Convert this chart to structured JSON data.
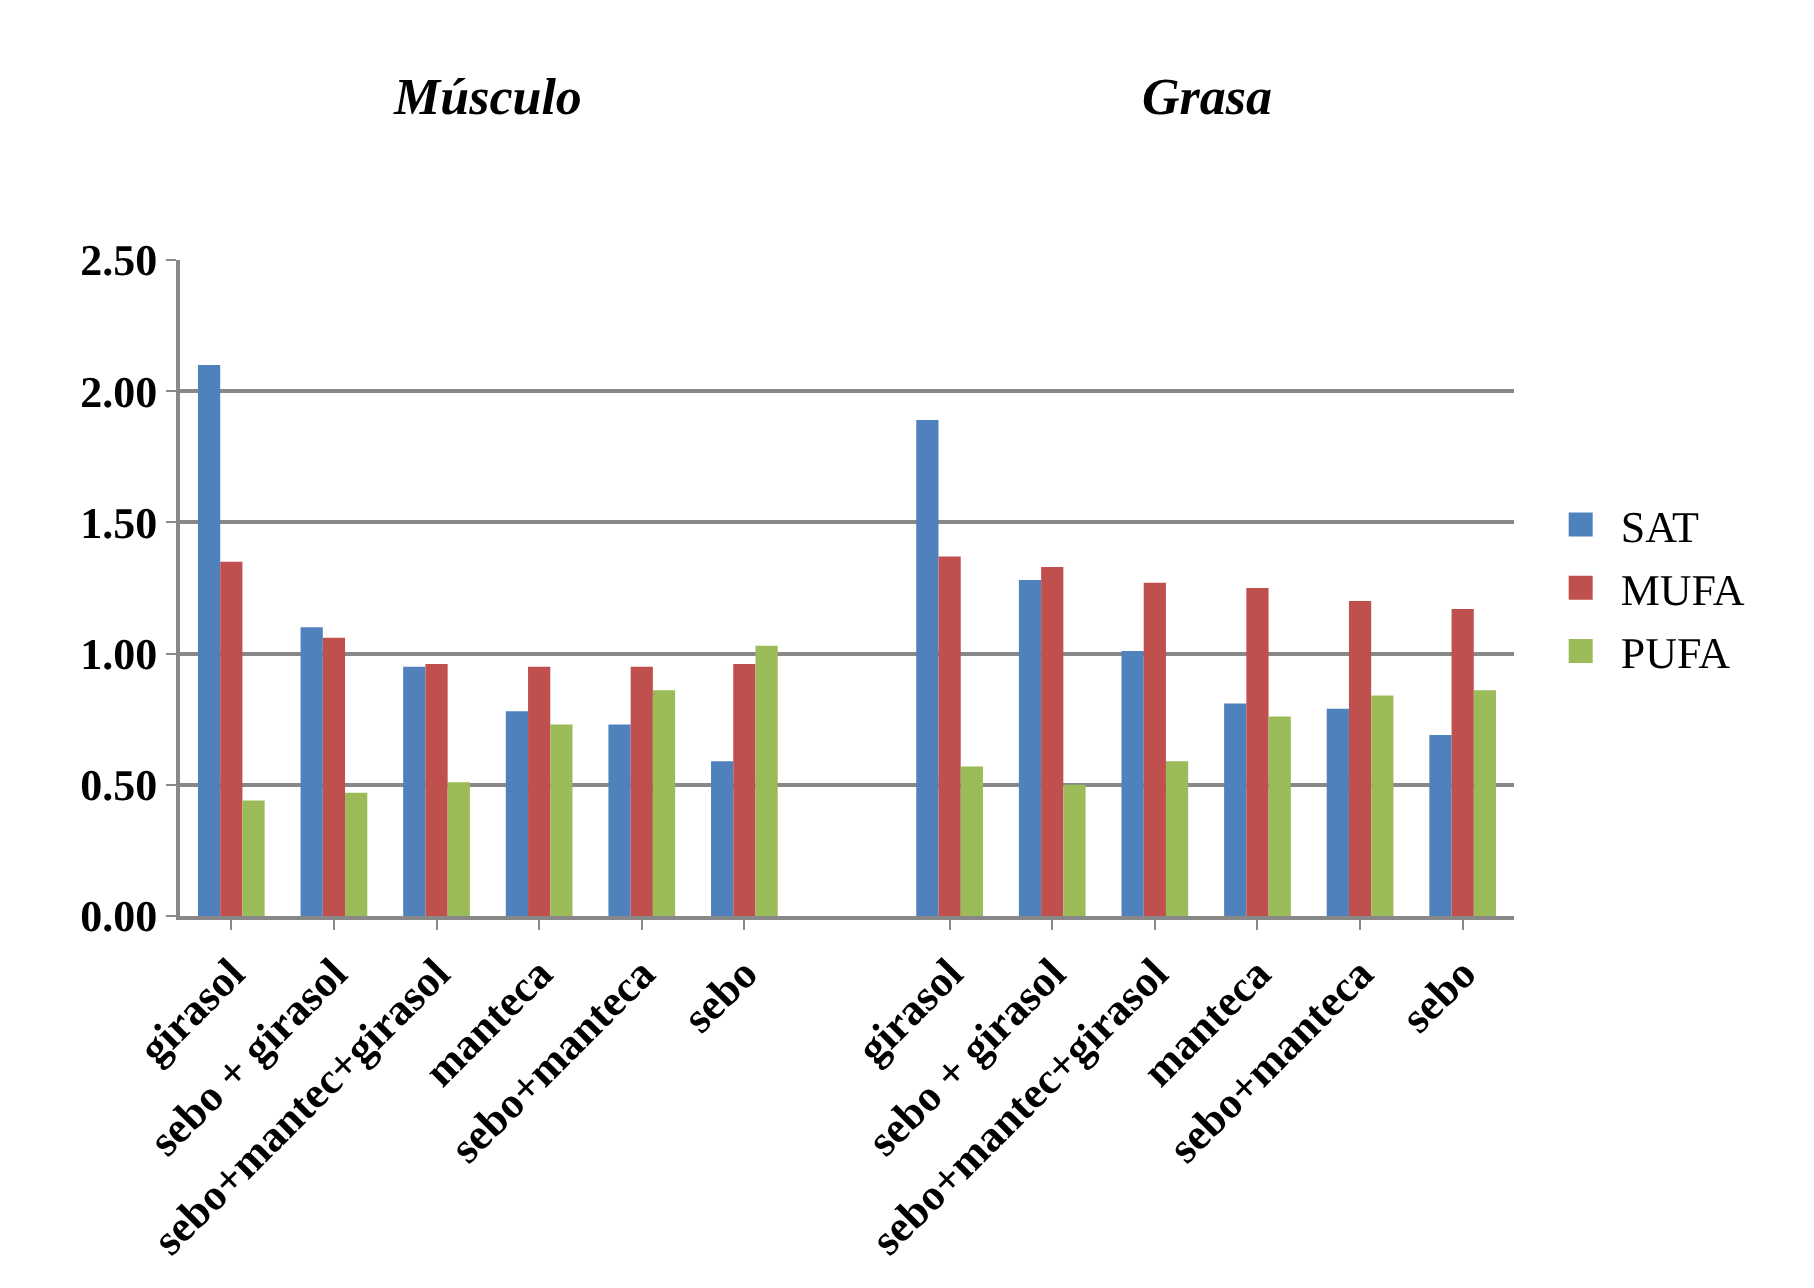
{
  "chart_data": {
    "type": "bar",
    "annotations": [
      "Músculo",
      "Grasa"
    ],
    "categories": [
      "girasol",
      "sebo + girasol",
      "sebo+mantec+girasol",
      "manteca",
      "sebo+manteca",
      "sebo",
      null,
      "girasol",
      "sebo + girasol",
      "sebo+mantec+girasol",
      "manteca",
      "sebo+manteca",
      "sebo"
    ],
    "series": [
      {
        "name": "SAT",
        "color": "#4f81bd",
        "values": [
          2.1,
          1.1,
          0.95,
          0.78,
          0.73,
          0.59,
          null,
          1.89,
          1.28,
          1.01,
          0.81,
          0.79,
          0.69
        ]
      },
      {
        "name": "MUFA",
        "color": "#c0504d",
        "values": [
          1.35,
          1.06,
          0.96,
          0.95,
          0.95,
          0.96,
          null,
          1.37,
          1.33,
          1.27,
          1.25,
          1.2,
          1.17
        ]
      },
      {
        "name": "PUFA",
        "color": "#9bbb59",
        "values": [
          0.44,
          0.47,
          0.51,
          0.73,
          0.86,
          1.03,
          null,
          0.57,
          0.5,
          0.59,
          0.76,
          0.84,
          0.86
        ]
      }
    ],
    "ylim": [
      0,
      2.5
    ],
    "yticks": [
      {
        "value": 0,
        "label": "0.00"
      },
      {
        "value": 0.5,
        "label": "0.50"
      },
      {
        "value": 1,
        "label": "1.00"
      },
      {
        "value": 1.5,
        "label": "1.50"
      },
      {
        "value": 2,
        "label": "2.00"
      },
      {
        "value": 2.5,
        "label": "2.50"
      }
    ],
    "grid": "y",
    "legend": "right"
  }
}
